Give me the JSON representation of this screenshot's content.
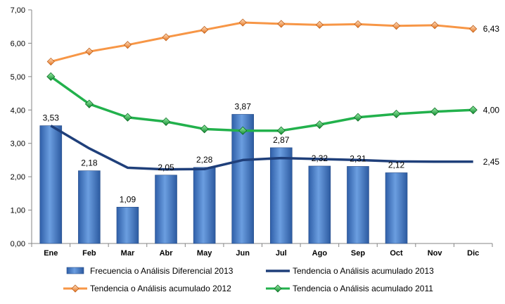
{
  "chart_data": {
    "type": "bar",
    "categories": [
      "Ene",
      "Feb",
      "Mar",
      "Abr",
      "May",
      "Jun",
      "Jul",
      "Ago",
      "Sep",
      "Oct",
      "Nov",
      "Dic"
    ],
    "ylim": [
      0,
      7
    ],
    "yticks": [
      "0,00",
      "1,00",
      "2,00",
      "3,00",
      "4,00",
      "5,00",
      "6,00",
      "7,00"
    ],
    "grid": false,
    "legend_position": "bottom",
    "series": [
      {
        "name": "Frecuencia o Análisis Diferencial 2013",
        "kind": "bar",
        "color": "#4a7dc9",
        "values": [
          3.53,
          2.18,
          1.09,
          2.05,
          2.28,
          3.87,
          2.87,
          2.32,
          2.31,
          2.12,
          null,
          null
        ],
        "labels": [
          "3,53",
          "2,18",
          "1,09",
          "2,05",
          "2,28",
          "3,87",
          "2,87",
          "2,32",
          "2,31",
          "2,12",
          "",
          ""
        ]
      },
      {
        "name": "Tendencia o Análisis acumulado 2013",
        "kind": "line",
        "color": "#1f3f7a",
        "values": [
          3.53,
          2.85,
          2.27,
          2.22,
          2.23,
          2.5,
          2.56,
          2.53,
          2.5,
          2.46,
          2.45,
          2.45
        ],
        "labels": [
          "",
          "",
          "",
          "",
          "",
          "",
          "",
          "",
          "",
          "",
          "",
          "2,45"
        ]
      },
      {
        "name": "Tendencia o Análisis acumulado 2012",
        "kind": "line-marker",
        "color": "#f79646",
        "values": [
          5.45,
          5.75,
          5.95,
          6.18,
          6.4,
          6.62,
          6.58,
          6.55,
          6.57,
          6.52,
          6.54,
          6.43
        ],
        "labels": [
          "",
          "",
          "",
          "",
          "",
          "",
          "",
          "",
          "",
          "",
          "",
          "6,43"
        ]
      },
      {
        "name": "Tendencia o Análisis acumulado 2011",
        "kind": "line-marker",
        "color": "#22b14c",
        "values": [
          5.0,
          4.18,
          3.78,
          3.65,
          3.43,
          3.38,
          3.38,
          3.56,
          3.78,
          3.88,
          3.95,
          4.0
        ],
        "labels": [
          "",
          "",
          "",
          "",
          "",
          "",
          "",
          "",
          "",
          "",
          "",
          "4,00"
        ]
      }
    ]
  }
}
